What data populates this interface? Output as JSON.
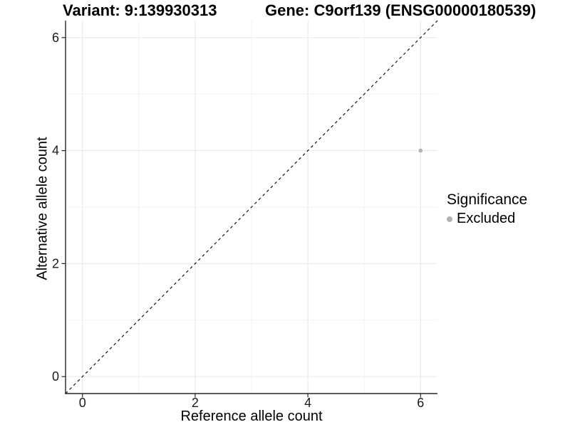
{
  "chart_data": {
    "type": "scatter",
    "title_left": "Variant: 9:139930313",
    "title_right": "Gene: C9orf139 (ENSG00000180539)",
    "xlabel": "Reference allele count",
    "ylabel": "Alternative allele count",
    "xlim": [
      -0.3,
      6.3
    ],
    "ylim": [
      -0.3,
      6.3
    ],
    "xticks": [
      0,
      2,
      4,
      6
    ],
    "yticks": [
      0,
      2,
      4,
      6
    ],
    "xminor": [
      1,
      3,
      5
    ],
    "yminor": [
      1,
      3,
      5
    ],
    "grid": "on",
    "background": "#ffffff",
    "identity_line": {
      "style": "dashed",
      "color": "#000000",
      "from": [
        -0.3,
        -0.3
      ],
      "to": [
        6.3,
        6.3
      ]
    },
    "series": [
      {
        "name": "Excluded",
        "color": "#b2b2b2",
        "points": [
          {
            "x": 6,
            "y": 4
          }
        ]
      }
    ],
    "legend": {
      "title": "Significance",
      "position": "right",
      "entries": [
        {
          "label": "Excluded",
          "color": "#b2b2b2",
          "marker": "circle"
        }
      ]
    },
    "colors": {
      "major_grid": "#e6e6e6",
      "minor_grid": "#f2f2f2",
      "axis_line": "#262626",
      "tick_text": "#1a1a1a"
    }
  }
}
